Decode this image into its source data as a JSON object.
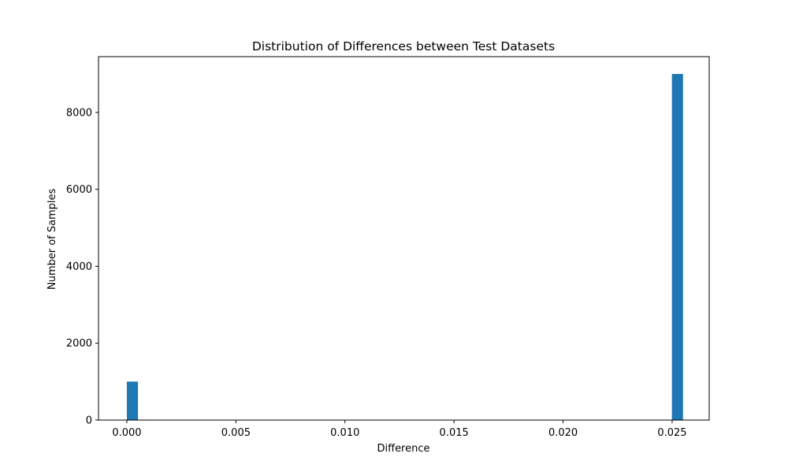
{
  "chart_data": {
    "type": "bar",
    "title": "Distribution of Differences between Test Datasets",
    "xlabel": "Difference",
    "ylabel": "Number of Samples",
    "xlim": [
      -0.0013,
      0.0267
    ],
    "ylim": [
      0,
      9450
    ],
    "xticks": [
      0.0,
      0.005,
      0.01,
      0.015,
      0.02,
      0.025
    ],
    "xtick_labels": [
      "0.000",
      "0.005",
      "0.010",
      "0.015",
      "0.020",
      "0.025"
    ],
    "yticks": [
      0,
      2000,
      4000,
      6000,
      8000
    ],
    "ytick_labels": [
      "0",
      "2000",
      "4000",
      "6000",
      "8000"
    ],
    "bins": [
      {
        "x0": 0.0,
        "x1": 0.00051,
        "value": 1000
      },
      {
        "x0": 0.02499,
        "x1": 0.0255,
        "value": 9000
      }
    ],
    "bar_color": "#1f77b4",
    "grid": false,
    "legend": "none"
  }
}
